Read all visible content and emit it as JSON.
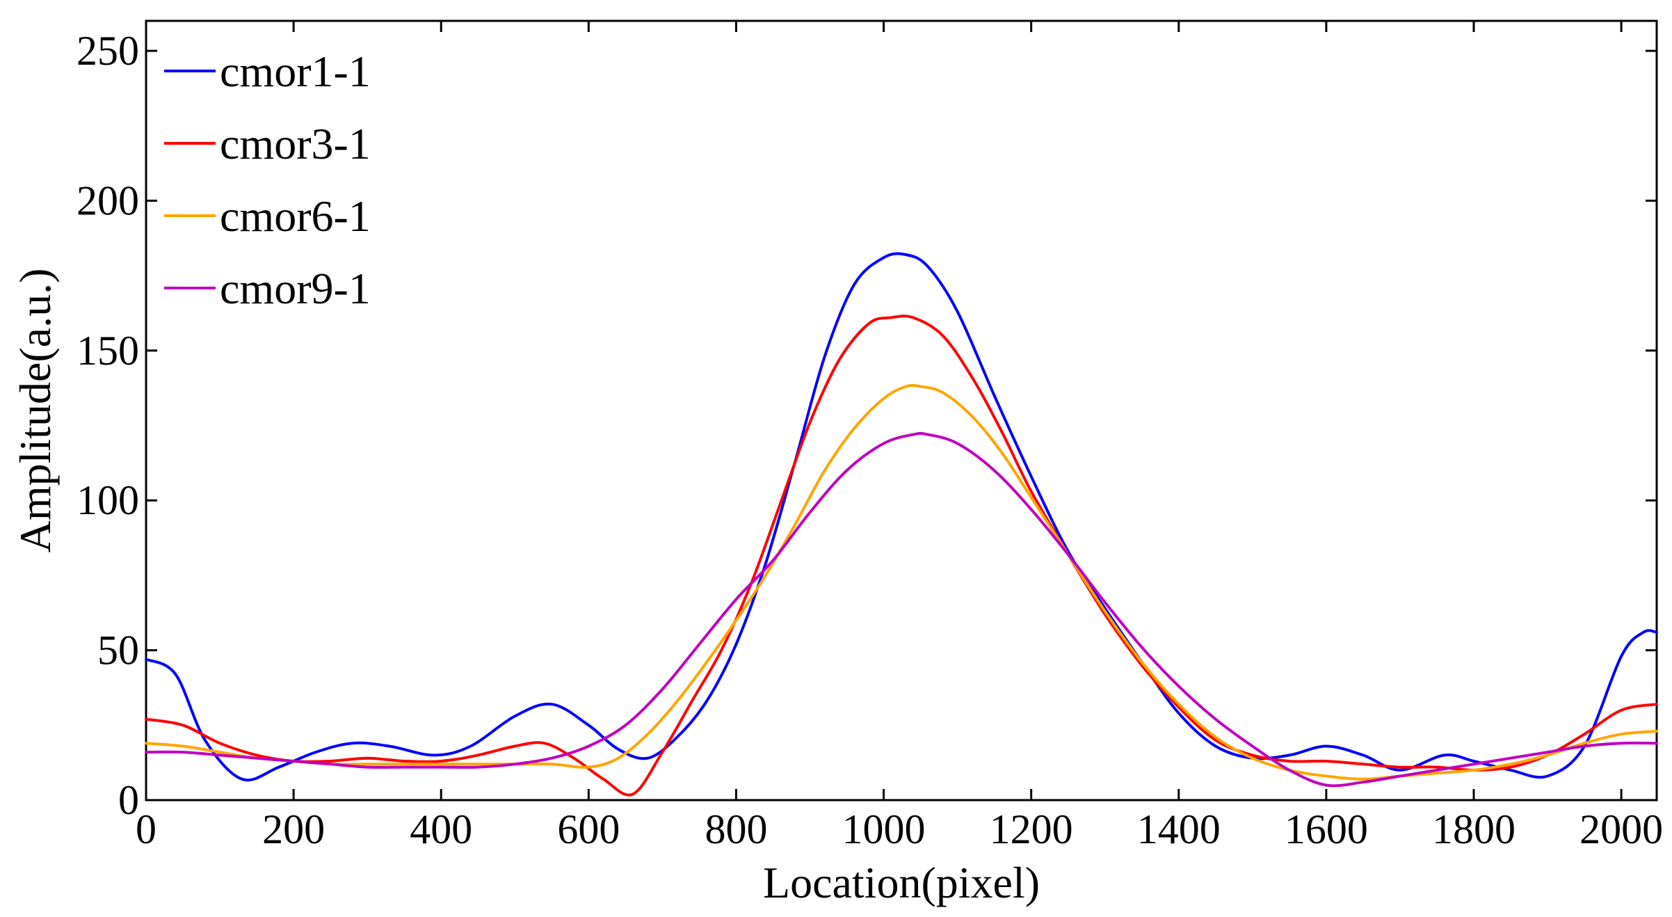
{
  "chart_data": {
    "type": "line",
    "title": "",
    "xlabel": "Location(pixel)",
    "ylabel": "Amplitude(a.u.)",
    "xlim": [
      0,
      2048
    ],
    "ylim": [
      0,
      260
    ],
    "xticks": [
      0,
      200,
      400,
      600,
      800,
      1000,
      1200,
      1400,
      1600,
      1800,
      2000
    ],
    "yticks": [
      0,
      50,
      100,
      150,
      200,
      250
    ],
    "grid": false,
    "legend_position": "top-left",
    "series": [
      {
        "name": "cmor1-1",
        "color": "#0000ff",
        "x": [
          0,
          40,
          80,
          130,
          180,
          230,
          280,
          330,
          390,
          440,
          500,
          550,
          600,
          640,
          680,
          720,
          760,
          800,
          840,
          880,
          920,
          960,
          1000,
          1030,
          1060,
          1100,
          1150,
          1200,
          1250,
          1300,
          1350,
          1400,
          1450,
          1500,
          1550,
          1600,
          1650,
          1700,
          1760,
          1800,
          1850,
          1900,
          1950,
          2000,
          2030,
          2048
        ],
        "y": [
          47,
          42,
          20,
          7,
          11,
          16,
          19,
          18,
          15,
          18,
          28,
          32,
          25,
          17,
          14,
          21,
          33,
          52,
          79,
          113,
          148,
          172,
          181,
          182,
          178,
          163,
          135,
          108,
          83,
          64,
          46,
          29,
          18,
          14,
          15,
          18,
          15,
          10,
          15,
          13,
          10,
          8,
          18,
          48,
          56,
          56
        ]
      },
      {
        "name": "cmor3-1",
        "color": "#ff0000",
        "x": [
          0,
          50,
          100,
          150,
          200,
          250,
          300,
          350,
          400,
          450,
          500,
          540,
          580,
          620,
          660,
          700,
          740,
          780,
          820,
          860,
          900,
          940,
          980,
          1010,
          1040,
          1080,
          1120,
          1160,
          1200,
          1250,
          1300,
          1350,
          1400,
          1450,
          1500,
          1550,
          1600,
          1650,
          1700,
          1750,
          1800,
          1850,
          1900,
          1950,
          2000,
          2048
        ],
        "y": [
          27,
          25,
          19,
          15,
          13,
          13,
          14,
          13,
          13,
          15,
          18,
          19,
          14,
          7,
          2,
          16,
          33,
          50,
          72,
          99,
          126,
          147,
          159,
          161,
          161,
          155,
          141,
          123,
          103,
          82,
          62,
          45,
          31,
          20,
          15,
          13,
          13,
          12,
          11,
          11,
          10,
          11,
          15,
          22,
          30,
          32
        ]
      },
      {
        "name": "cmor6-1",
        "color": "#ffa500",
        "x": [
          0,
          50,
          100,
          150,
          200,
          250,
          300,
          350,
          400,
          450,
          500,
          550,
          600,
          640,
          680,
          720,
          760,
          800,
          840,
          880,
          920,
          960,
          1000,
          1030,
          1050,
          1080,
          1120,
          1160,
          1200,
          1250,
          1300,
          1350,
          1400,
          1450,
          1500,
          1550,
          1600,
          1650,
          1700,
          1750,
          1800,
          1850,
          1900,
          1950,
          2000,
          2048
        ],
        "y": [
          19,
          18,
          16,
          14,
          13,
          12,
          12,
          12,
          12,
          12,
          12,
          12,
          11,
          14,
          22,
          33,
          46,
          60,
          75,
          92,
          110,
          124,
          134,
          138,
          138,
          136,
          128,
          116,
          101,
          82,
          63,
          46,
          32,
          21,
          14,
          10,
          8,
          7,
          8,
          9,
          10,
          12,
          15,
          19,
          22,
          23
        ]
      },
      {
        "name": "cmor9-1",
        "color": "#c000c0",
        "x": [
          0,
          50,
          100,
          150,
          200,
          250,
          300,
          350,
          400,
          450,
          500,
          550,
          600,
          650,
          700,
          750,
          800,
          850,
          900,
          950,
          1000,
          1040,
          1060,
          1100,
          1150,
          1200,
          1250,
          1300,
          1350,
          1400,
          1450,
          1500,
          1550,
          1600,
          1650,
          1700,
          1750,
          1800,
          1850,
          1900,
          1950,
          2000,
          2048
        ],
        "y": [
          16,
          16,
          15,
          14,
          13,
          12,
          11,
          11,
          11,
          11,
          12,
          14,
          18,
          25,
          37,
          52,
          67,
          80,
          96,
          110,
          119,
          122,
          122,
          119,
          110,
          97,
          82,
          66,
          51,
          38,
          27,
          18,
          10,
          5,
          6,
          8,
          10,
          12,
          14,
          16,
          18,
          19,
          19
        ]
      }
    ]
  }
}
